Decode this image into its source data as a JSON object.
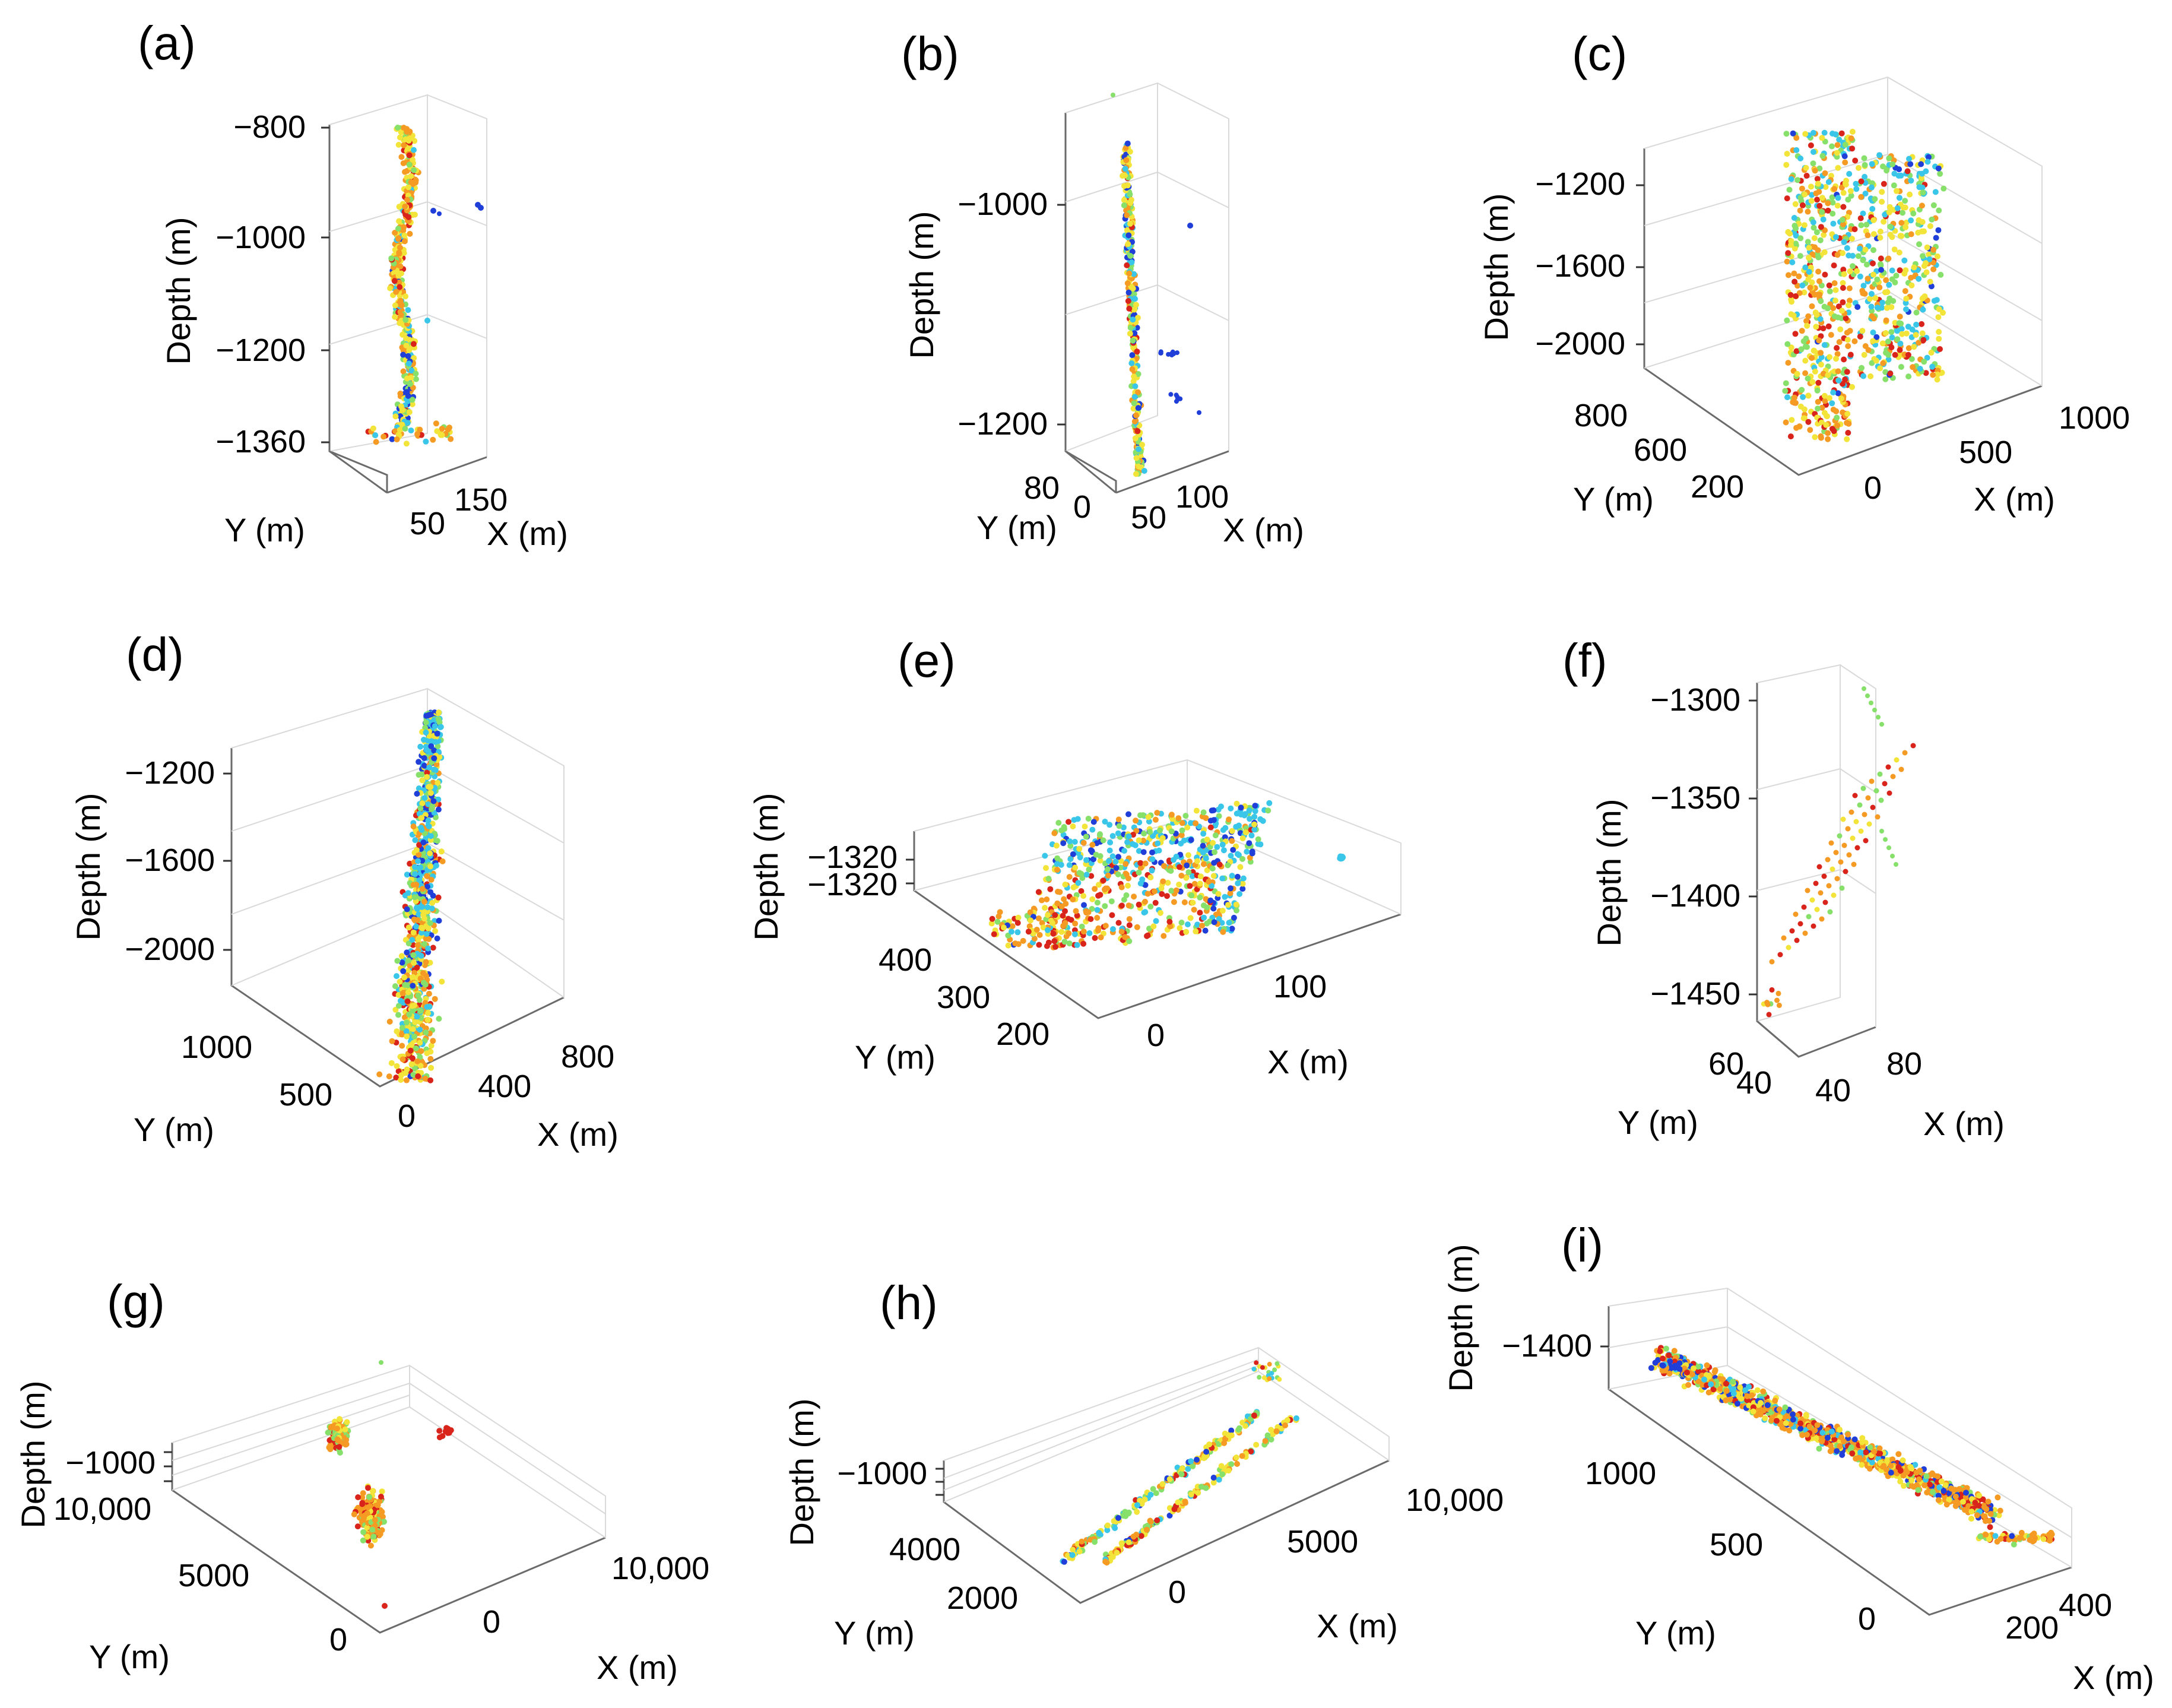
{
  "figure": {
    "panels": [
      "a",
      "b",
      "c",
      "d",
      "e",
      "f",
      "g",
      "h",
      "i"
    ]
  },
  "colors": {
    "blue": "#1f3fd8",
    "cyan": "#39c6e8",
    "green": "#86e06a",
    "yellow": "#f2e438",
    "orange": "#f59a23",
    "red": "#d9241c"
  },
  "chart_data": [
    {
      "id": "a",
      "label": "(a)",
      "type": "scatter",
      "zlabel": "Depth (m)",
      "ylabel": "Y (m)",
      "xlabel": "X (m)",
      "zticks": [
        "−800",
        "−1000",
        "−1200",
        "−1360"
      ],
      "xticks": [
        "50",
        "150"
      ],
      "yticks": [],
      "zlim": [
        -1360,
        -800
      ],
      "shape": "vertical-column",
      "color_mix": {
        "blue": 0.05,
        "cyan": 0.08,
        "green": 0.12,
        "yellow": 0.35,
        "orange": 0.3,
        "red": 0.1
      },
      "outliers": [
        {
          "region": "upper-right",
          "color": "blue"
        },
        {
          "region": "mid-right",
          "color": "cyan"
        }
      ]
    },
    {
      "id": "b",
      "label": "(b)",
      "type": "scatter",
      "zlabel": "Depth (m)",
      "ylabel": "Y (m)",
      "xlabel": "X (m)",
      "zticks": [
        "−1000",
        "−1200"
      ],
      "yticks": [
        "80",
        "0"
      ],
      "xticks": [
        "50",
        "100"
      ],
      "zlim": [
        -1230,
        -920
      ],
      "shape": "thin-vertical-column",
      "color_mix": {
        "blue": 0.15,
        "cyan": 0.12,
        "green": 0.18,
        "yellow": 0.3,
        "orange": 0.2,
        "red": 0.05
      },
      "outliers": [
        {
          "region": "mid-right",
          "color": "blue"
        },
        {
          "region": "lower-right",
          "color": "blue"
        }
      ]
    },
    {
      "id": "c",
      "label": "(c)",
      "type": "scatter",
      "zlabel": "Depth (m)",
      "ylabel": "Y (m)",
      "xlabel": "X (m)",
      "zticks": [
        "−1200",
        "−1600",
        "−2000"
      ],
      "yticks": [
        "800",
        "600",
        "200"
      ],
      "xticks": [
        "0",
        "500",
        "1000"
      ],
      "zlim": [
        -2200,
        -1000
      ],
      "shape": "two-vertical-slabs",
      "color_mix": {
        "blue": 0.02,
        "cyan": 0.2,
        "green": 0.2,
        "yellow": 0.25,
        "orange": 0.23,
        "red": 0.1
      }
    },
    {
      "id": "d",
      "label": "(d)",
      "type": "scatter",
      "zlabel": "Depth (m)",
      "ylabel": "Y (m)",
      "xlabel": "X (m)",
      "zticks": [
        "−1200",
        "−1600",
        "−2000"
      ],
      "yticks": [
        "1000",
        "500"
      ],
      "xticks": [
        "0",
        "400",
        "800"
      ],
      "zlim": [
        -2200,
        -1000
      ],
      "shape": "vertical-column",
      "color_mix": {
        "blue": 0.1,
        "cyan": 0.25,
        "green": 0.2,
        "yellow": 0.2,
        "orange": 0.18,
        "red": 0.07
      }
    },
    {
      "id": "e",
      "label": "(e)",
      "type": "scatter",
      "zlabel": "Depth (m)",
      "ylabel": "Y (m)",
      "xlabel": "X (m)",
      "zticks": [
        "−1320",
        "−1320"
      ],
      "yticks": [
        "400",
        "300",
        "200"
      ],
      "xticks": [
        "0",
        "100"
      ],
      "shape": "flat-layer",
      "color_mix": {
        "blue": 0.12,
        "cyan": 0.25,
        "green": 0.15,
        "yellow": 0.18,
        "orange": 0.2,
        "red": 0.1
      },
      "outliers": [
        {
          "region": "right",
          "color": "cyan"
        }
      ]
    },
    {
      "id": "f",
      "label": "(f)",
      "type": "scatter",
      "zlabel": "Depth (m)",
      "ylabel": "Y (m)",
      "xlabel": "X (m)",
      "zticks": [
        "−1300",
        "−1350",
        "−1400",
        "−1450"
      ],
      "yticks": [
        "60",
        "40"
      ],
      "xticks": [
        "40",
        "80"
      ],
      "zlim": [
        -1465,
        -1285
      ],
      "shape": "diagonal-dotted-lines",
      "color_mix": {
        "green": 0.2,
        "yellow": 0.15,
        "orange": 0.45,
        "red": 0.2
      }
    },
    {
      "id": "g",
      "label": "(g)",
      "type": "scatter",
      "zlabel": "Depth (m)",
      "ylabel": "Y (m)",
      "xlabel": "X (m)",
      "zticks": [
        "−1000"
      ],
      "yticks": [
        "10,000",
        "5000",
        "0"
      ],
      "xticks": [
        "0",
        "10,000"
      ],
      "shape": "two-clusters",
      "color_mix": {
        "green": 0.3,
        "yellow": 0.2,
        "orange": 0.35,
        "red": 0.15
      }
    },
    {
      "id": "h",
      "label": "(h)",
      "type": "scatter",
      "zlabel": "Depth (m)",
      "ylabel": "Y (m)",
      "xlabel": "X (m)",
      "zticks": [
        "−1000"
      ],
      "yticks": [
        "4000",
        "2000"
      ],
      "xticks": [
        "0",
        "5000",
        "10,000"
      ],
      "shape": "two-diagonal-bands",
      "color_mix": {
        "blue": 0.05,
        "cyan": 0.15,
        "green": 0.2,
        "yellow": 0.3,
        "orange": 0.2,
        "red": 0.1
      }
    },
    {
      "id": "i",
      "label": "(i)",
      "type": "scatter",
      "zlabel": "Depth (m)",
      "ylabel": "Y (m)",
      "xlabel": "X (m)",
      "zticks": [
        "−1400"
      ],
      "yticks": [
        "1000",
        "500",
        "0"
      ],
      "xticks": [
        "200",
        "400"
      ],
      "shape": "diagonal-band",
      "color_mix": {
        "blue": 0.08,
        "cyan": 0.12,
        "green": 0.1,
        "yellow": 0.2,
        "orange": 0.4,
        "red": 0.1
      }
    }
  ]
}
